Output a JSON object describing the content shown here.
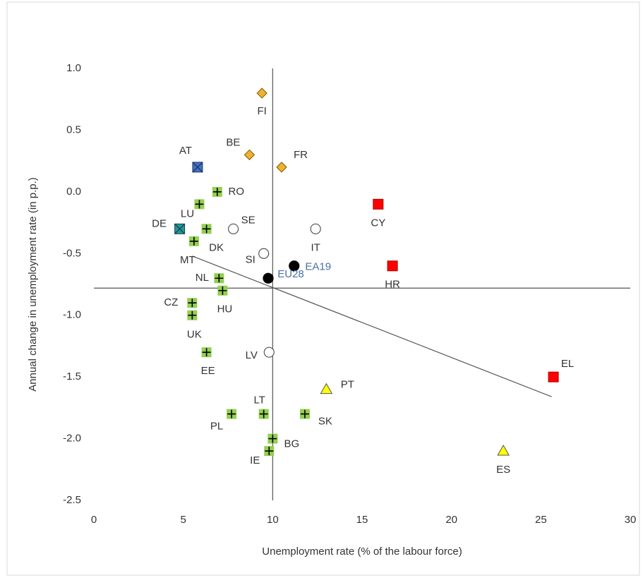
{
  "chart_data": {
    "type": "scatter",
    "x_label": "Unemployment rate (% of the labour force)",
    "y_label": "Annual change in unemployment rate (in p.p.)",
    "xlim": [
      0,
      30
    ],
    "xticks": [
      0,
      5,
      10,
      15,
      20,
      25,
      30
    ],
    "ylim": [
      -2.5,
      1.0
    ],
    "yticks": [
      {
        "value": 1.0,
        "label": "1.0"
      },
      {
        "value": 0.5,
        "label": "0.5"
      },
      {
        "value": 0,
        "label": "0.0"
      },
      {
        "value": -0.5,
        "label": "-0.5"
      },
      {
        "value": -1.0,
        "label": "-1.0"
      },
      {
        "value": -1.5,
        "label": "-1.5"
      },
      {
        "value": -2.0,
        "label": "-2.0"
      },
      {
        "value": -2.5,
        "label": "-2.5"
      }
    ],
    "reference_x": 10.0,
    "reference_y": -0.78,
    "trendline": {
      "x": [
        5.5,
        25.6
      ],
      "values": [
        -0.52,
        -1.66
      ]
    },
    "series": [
      {
        "marker": "plus-square",
        "color": "#92d050",
        "labels": [
          "RO",
          "LU",
          "DK",
          "MT",
          "NL",
          "HU",
          "CZ",
          "UK",
          "EE",
          "PL",
          "LT",
          "SK",
          "BG",
          "IE"
        ],
        "x": [
          6.9,
          5.9,
          6.3,
          5.6,
          7.0,
          7.2,
          5.5,
          5.5,
          6.3,
          7.7,
          9.5,
          11.8,
          10.0,
          9.8
        ],
        "values": [
          0.0,
          -0.1,
          -0.3,
          -0.4,
          -0.7,
          -0.8,
          -0.9,
          -1.0,
          -1.3,
          -1.8,
          -1.8,
          -1.8,
          -2.0,
          -2.1
        ]
      },
      {
        "marker": "diamond",
        "color": "#f0b030",
        "labels": [
          "FI",
          "BE",
          "FR"
        ],
        "x": [
          9.4,
          8.7,
          10.5
        ],
        "values": [
          0.8,
          0.3,
          0.2
        ]
      },
      {
        "marker": "open-circle",
        "color": "#ffffff",
        "labels": [
          "SE",
          "SI",
          "IT",
          "LV"
        ],
        "x": [
          7.8,
          9.5,
          12.4,
          9.8
        ],
        "values": [
          -0.3,
          -0.5,
          -0.3,
          -1.3
        ]
      },
      {
        "marker": "square",
        "color": "#ff0000",
        "labels": [
          "CY",
          "HR",
          "EL"
        ],
        "x": [
          15.9,
          16.7,
          25.7
        ],
        "values": [
          -0.1,
          -0.6,
          -1.5
        ]
      },
      {
        "marker": "triangle",
        "color": "#ffff00",
        "labels": [
          "PT",
          "ES"
        ],
        "x": [
          13.0,
          22.9
        ],
        "values": [
          -1.6,
          -2.1
        ]
      },
      {
        "marker": "circle",
        "color": "#000000",
        "label_color": "#4a6fa5",
        "labels": [
          "EA19",
          "EU28"
        ],
        "x": [
          11.2,
          9.75
        ],
        "values": [
          -0.6,
          -0.7
        ]
      },
      {
        "marker": "x-square",
        "color": "#4472c4",
        "labels": [
          "AT"
        ],
        "x": [
          5.8
        ],
        "values": [
          0.2
        ]
      },
      {
        "marker": "x-square",
        "color": "#1f9e89",
        "labels": [
          "DE"
        ],
        "x": [
          4.8
        ],
        "values": [
          -0.3
        ]
      }
    ]
  }
}
